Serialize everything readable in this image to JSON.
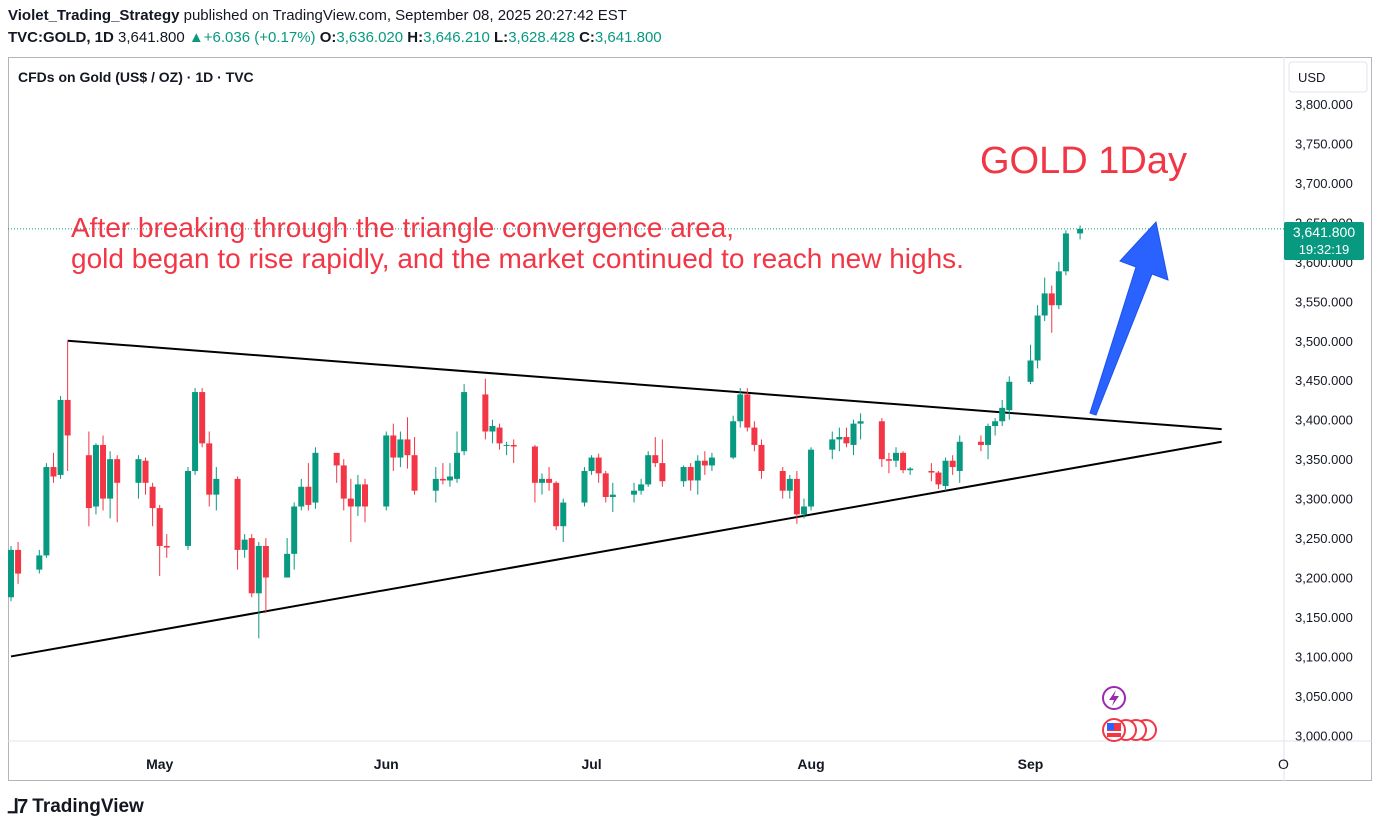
{
  "header": {
    "author": "Violet_Trading_Strategy",
    "published": "published on TradingView.com, September 08, 2025 20:27:42 EST",
    "symbol": "TVC:GOLD, 1D",
    "last": "3,641.800",
    "change": "+6.036 (+0.17%)",
    "o_label": "O:",
    "o": "3,636.020",
    "h_label": "H:",
    "h": "3,646.210",
    "l_label": "L:",
    "l": "3,628.428",
    "c_label": "C:",
    "c": "3,641.800"
  },
  "chart_title": "CFDs on Gold (US$ / OZ) · 1D · TVC",
  "currency": "USD",
  "annotations": {
    "big_title": "GOLD 1Day",
    "line1": "After breaking through the triangle convergence area,",
    "line2": "gold began to rise rapidly, and the market continued to reach new highs."
  },
  "price_tag": {
    "price": "3,641.800",
    "countdown": "19:32:19"
  },
  "brand": {
    "name": "TradingView"
  },
  "colors": {
    "up": "#089981",
    "down": "#f23645",
    "annotation": "#f23645",
    "arrow": "#2962ff"
  },
  "chart_data": {
    "type": "candlestick",
    "y_ticks": [
      "3,800.000",
      "3,750.000",
      "3,700.000",
      "3,650.000",
      "3,600.000",
      "3,550.000",
      "3,500.000",
      "3,450.000",
      "3,400.000",
      "3,350.000",
      "3,300.000",
      "3,250.000",
      "3,200.000",
      "3,150.000",
      "3,100.000",
      "3,050.000",
      "3,000.000"
    ],
    "ylim": [
      2975,
      3840
    ],
    "x_ticks": [
      {
        "label": "May",
        "date": "2025-05-01"
      },
      {
        "label": "Jun",
        "date": "2025-06-02"
      },
      {
        "label": "Jul",
        "date": "2025-07-01"
      },
      {
        "label": "Aug",
        "date": "2025-08-01"
      },
      {
        "label": "Sep",
        "date": "2025-09-01"
      }
    ],
    "candles": [
      {
        "d": "2025-04-10",
        "o": 3175,
        "h": 3240,
        "l": 3170,
        "c": 3235
      },
      {
        "d": "2025-04-11",
        "o": 3235,
        "h": 3245,
        "l": 3192,
        "c": 3205
      },
      {
        "d": "2025-04-14",
        "o": 3210,
        "h": 3235,
        "l": 3205,
        "c": 3228
      },
      {
        "d": "2025-04-15",
        "o": 3228,
        "h": 3345,
        "l": 3225,
        "c": 3340
      },
      {
        "d": "2025-04-16",
        "o": 3340,
        "h": 3358,
        "l": 3320,
        "c": 3328
      },
      {
        "d": "2025-04-17",
        "o": 3330,
        "h": 3430,
        "l": 3325,
        "c": 3425
      },
      {
        "d": "2025-04-18",
        "o": 3425,
        "h": 3500,
        "l": 3335,
        "c": 3380
      },
      {
        "d": "2025-04-21",
        "o": 3355,
        "h": 3385,
        "l": 3265,
        "c": 3288
      },
      {
        "d": "2025-04-22",
        "o": 3290,
        "h": 3370,
        "l": 3280,
        "c": 3368
      },
      {
        "d": "2025-04-23",
        "o": 3368,
        "h": 3380,
        "l": 3285,
        "c": 3300
      },
      {
        "d": "2025-04-24",
        "o": 3300,
        "h": 3360,
        "l": 3275,
        "c": 3350
      },
      {
        "d": "2025-04-25",
        "o": 3350,
        "h": 3355,
        "l": 3270,
        "c": 3320
      },
      {
        "d": "2025-04-28",
        "o": 3320,
        "h": 3355,
        "l": 3300,
        "c": 3350
      },
      {
        "d": "2025-04-29",
        "o": 3348,
        "h": 3352,
        "l": 3305,
        "c": 3320
      },
      {
        "d": "2025-04-30",
        "o": 3315,
        "h": 3320,
        "l": 3265,
        "c": 3288
      },
      {
        "d": "2025-05-01",
        "o": 3288,
        "h": 3292,
        "l": 3202,
        "c": 3240
      },
      {
        "d": "2025-05-02",
        "o": 3240,
        "h": 3255,
        "l": 3225,
        "c": 3238
      },
      {
        "d": "2025-05-05",
        "o": 3240,
        "h": 3340,
        "l": 3235,
        "c": 3335
      },
      {
        "d": "2025-05-06",
        "o": 3335,
        "h": 3440,
        "l": 3330,
        "c": 3435
      },
      {
        "d": "2025-05-07",
        "o": 3435,
        "h": 3440,
        "l": 3365,
        "c": 3370
      },
      {
        "d": "2025-05-08",
        "o": 3370,
        "h": 3385,
        "l": 3290,
        "c": 3305
      },
      {
        "d": "2025-05-09",
        "o": 3305,
        "h": 3340,
        "l": 3285,
        "c": 3325
      },
      {
        "d": "2025-05-12",
        "o": 3325,
        "h": 3328,
        "l": 3210,
        "c": 3235
      },
      {
        "d": "2025-05-13",
        "o": 3235,
        "h": 3255,
        "l": 3225,
        "c": 3248
      },
      {
        "d": "2025-05-14",
        "o": 3250,
        "h": 3255,
        "l": 3175,
        "c": 3180
      },
      {
        "d": "2025-05-15",
        "o": 3180,
        "h": 3245,
        "l": 3123,
        "c": 3240
      },
      {
        "d": "2025-05-16",
        "o": 3240,
        "h": 3250,
        "l": 3155,
        "c": 3200
      },
      {
        "d": "2025-05-19",
        "o": 3200,
        "h": 3250,
        "l": 3200,
        "c": 3230
      },
      {
        "d": "2025-05-20",
        "o": 3230,
        "h": 3295,
        "l": 3210,
        "c": 3290
      },
      {
        "d": "2025-05-21",
        "o": 3290,
        "h": 3325,
        "l": 3285,
        "c": 3315
      },
      {
        "d": "2025-05-22",
        "o": 3315,
        "h": 3345,
        "l": 3285,
        "c": 3292
      },
      {
        "d": "2025-05-23",
        "o": 3295,
        "h": 3365,
        "l": 3287,
        "c": 3358
      },
      {
        "d": "2025-05-26",
        "o": 3358,
        "h": 3356,
        "l": 3320,
        "c": 3342
      },
      {
        "d": "2025-05-27",
        "o": 3342,
        "h": 3350,
        "l": 3285,
        "c": 3300
      },
      {
        "d": "2025-05-28",
        "o": 3300,
        "h": 3325,
        "l": 3245,
        "c": 3290
      },
      {
        "d": "2025-05-29",
        "o": 3290,
        "h": 3330,
        "l": 3278,
        "c": 3318
      },
      {
        "d": "2025-05-30",
        "o": 3318,
        "h": 3325,
        "l": 3270,
        "c": 3290
      },
      {
        "d": "2025-06-02",
        "o": 3290,
        "h": 3385,
        "l": 3285,
        "c": 3380
      },
      {
        "d": "2025-06-03",
        "o": 3380,
        "h": 3395,
        "l": 3335,
        "c": 3352
      },
      {
        "d": "2025-06-04",
        "o": 3352,
        "h": 3385,
        "l": 3340,
        "c": 3375
      },
      {
        "d": "2025-06-05",
        "o": 3375,
        "h": 3403,
        "l": 3338,
        "c": 3355
      },
      {
        "d": "2025-06-06",
        "o": 3355,
        "h": 3378,
        "l": 3305,
        "c": 3310
      },
      {
        "d": "2025-06-09",
        "o": 3310,
        "h": 3340,
        "l": 3295,
        "c": 3325
      },
      {
        "d": "2025-06-10",
        "o": 3325,
        "h": 3345,
        "l": 3318,
        "c": 3323
      },
      {
        "d": "2025-06-11",
        "o": 3323,
        "h": 3345,
        "l": 3315,
        "c": 3328
      },
      {
        "d": "2025-06-12",
        "o": 3325,
        "h": 3385,
        "l": 3320,
        "c": 3358
      },
      {
        "d": "2025-06-13",
        "o": 3360,
        "h": 3445,
        "l": 3355,
        "c": 3435
      },
      {
        "d": "2025-06-16",
        "o": 3432,
        "h": 3452,
        "l": 3375,
        "c": 3385
      },
      {
        "d": "2025-06-17",
        "o": 3385,
        "h": 3400,
        "l": 3370,
        "c": 3392
      },
      {
        "d": "2025-06-18",
        "o": 3390,
        "h": 3395,
        "l": 3362,
        "c": 3370
      },
      {
        "d": "2025-06-19",
        "o": 3368,
        "h": 3372,
        "l": 3355,
        "c": 3368
      },
      {
        "d": "2025-06-20",
        "o": 3368,
        "h": 3375,
        "l": 3345,
        "c": 3366
      },
      {
        "d": "2025-06-23",
        "o": 3366,
        "h": 3368,
        "l": 3295,
        "c": 3320
      },
      {
        "d": "2025-06-24",
        "o": 3320,
        "h": 3332,
        "l": 3305,
        "c": 3325
      },
      {
        "d": "2025-06-25",
        "o": 3325,
        "h": 3340,
        "l": 3310,
        "c": 3320
      },
      {
        "d": "2025-06-26",
        "o": 3320,
        "h": 3322,
        "l": 3260,
        "c": 3265
      },
      {
        "d": "2025-06-27",
        "o": 3265,
        "h": 3300,
        "l": 3245,
        "c": 3295
      },
      {
        "d": "2025-06-30",
        "o": 3295,
        "h": 3340,
        "l": 3290,
        "c": 3335
      },
      {
        "d": "2025-07-01",
        "o": 3335,
        "h": 3355,
        "l": 3330,
        "c": 3352
      },
      {
        "d": "2025-07-02",
        "o": 3352,
        "h": 3357,
        "l": 3320,
        "c": 3332
      },
      {
        "d": "2025-07-03",
        "o": 3332,
        "h": 3335,
        "l": 3295,
        "c": 3302
      },
      {
        "d": "2025-07-04",
        "o": 3302,
        "h": 3320,
        "l": 3283,
        "c": 3305
      },
      {
        "d": "2025-07-07",
        "o": 3305,
        "h": 3320,
        "l": 3295,
        "c": 3310
      },
      {
        "d": "2025-07-08",
        "o": 3310,
        "h": 3325,
        "l": 3305,
        "c": 3318
      },
      {
        "d": "2025-07-09",
        "o": 3318,
        "h": 3360,
        "l": 3315,
        "c": 3355
      },
      {
        "d": "2025-07-10",
        "o": 3355,
        "h": 3378,
        "l": 3340,
        "c": 3345
      },
      {
        "d": "2025-07-11",
        "o": 3345,
        "h": 3375,
        "l": 3315,
        "c": 3322
      },
      {
        "d": "2025-07-14",
        "o": 3322,
        "h": 3342,
        "l": 3315,
        "c": 3340
      },
      {
        "d": "2025-07-15",
        "o": 3340,
        "h": 3345,
        "l": 3310,
        "c": 3323
      },
      {
        "d": "2025-07-16",
        "o": 3323,
        "h": 3355,
        "l": 3305,
        "c": 3348
      },
      {
        "d": "2025-07-17",
        "o": 3348,
        "h": 3360,
        "l": 3330,
        "c": 3342
      },
      {
        "d": "2025-07-18",
        "o": 3342,
        "h": 3358,
        "l": 3335,
        "c": 3352
      },
      {
        "d": "2025-07-21",
        "o": 3352,
        "h": 3405,
        "l": 3350,
        "c": 3398
      },
      {
        "d": "2025-07-22",
        "o": 3398,
        "h": 3440,
        "l": 3390,
        "c": 3432
      },
      {
        "d": "2025-07-23",
        "o": 3432,
        "h": 3440,
        "l": 3385,
        "c": 3390
      },
      {
        "d": "2025-07-24",
        "o": 3390,
        "h": 3398,
        "l": 3360,
        "c": 3368
      },
      {
        "d": "2025-07-25",
        "o": 3368,
        "h": 3375,
        "l": 3325,
        "c": 3335
      },
      {
        "d": "2025-07-28",
        "o": 3335,
        "h": 3340,
        "l": 3300,
        "c": 3310
      },
      {
        "d": "2025-07-29",
        "o": 3310,
        "h": 3330,
        "l": 3300,
        "c": 3325
      },
      {
        "d": "2025-07-30",
        "o": 3325,
        "h": 3335,
        "l": 3268,
        "c": 3280
      },
      {
        "d": "2025-07-31",
        "o": 3280,
        "h": 3300,
        "l": 3275,
        "c": 3290
      },
      {
        "d": "2025-08-01",
        "o": 3290,
        "h": 3365,
        "l": 3285,
        "c": 3362
      },
      {
        "d": "2025-08-04",
        "o": 3362,
        "h": 3385,
        "l": 3350,
        "c": 3375
      },
      {
        "d": "2025-08-05",
        "o": 3375,
        "h": 3390,
        "l": 3360,
        "c": 3378
      },
      {
        "d": "2025-08-06",
        "o": 3378,
        "h": 3390,
        "l": 3365,
        "c": 3370
      },
      {
        "d": "2025-08-07",
        "o": 3368,
        "h": 3400,
        "l": 3355,
        "c": 3395
      },
      {
        "d": "2025-08-08",
        "o": 3395,
        "h": 3408,
        "l": 3375,
        "c": 3398
      },
      {
        "d": "2025-08-11",
        "o": 3398,
        "h": 3402,
        "l": 3340,
        "c": 3350
      },
      {
        "d": "2025-08-12",
        "o": 3350,
        "h": 3358,
        "l": 3332,
        "c": 3348
      },
      {
        "d": "2025-08-13",
        "o": 3348,
        "h": 3365,
        "l": 3340,
        "c": 3358
      },
      {
        "d": "2025-08-14",
        "o": 3358,
        "h": 3360,
        "l": 3332,
        "c": 3336
      },
      {
        "d": "2025-08-15",
        "o": 3336,
        "h": 3340,
        "l": 3330,
        "c": 3338
      },
      {
        "d": "2025-08-18",
        "o": 3335,
        "h": 3345,
        "l": 3322,
        "c": 3333
      },
      {
        "d": "2025-08-19",
        "o": 3333,
        "h": 3335,
        "l": 3312,
        "c": 3318
      },
      {
        "d": "2025-08-20",
        "o": 3316,
        "h": 3352,
        "l": 3310,
        "c": 3348
      },
      {
        "d": "2025-08-21",
        "o": 3348,
        "h": 3355,
        "l": 3330,
        "c": 3340
      },
      {
        "d": "2025-08-22",
        "o": 3335,
        "h": 3380,
        "l": 3320,
        "c": 3372
      },
      {
        "d": "2025-08-25",
        "o": 3372,
        "h": 3380,
        "l": 3360,
        "c": 3368
      },
      {
        "d": "2025-08-26",
        "o": 3368,
        "h": 3395,
        "l": 3350,
        "c": 3392
      },
      {
        "d": "2025-08-27",
        "o": 3392,
        "h": 3402,
        "l": 3380,
        "c": 3398
      },
      {
        "d": "2025-08-28",
        "o": 3398,
        "h": 3425,
        "l": 3392,
        "c": 3415
      },
      {
        "d": "2025-08-29",
        "o": 3412,
        "h": 3455,
        "l": 3400,
        "c": 3448
      },
      {
        "d": "2025-09-01",
        "o": 3448,
        "h": 3495,
        "l": 3445,
        "c": 3475
      },
      {
        "d": "2025-09-02",
        "o": 3475,
        "h": 3545,
        "l": 3465,
        "c": 3532
      },
      {
        "d": "2025-09-03",
        "o": 3532,
        "h": 3580,
        "l": 3525,
        "c": 3560
      },
      {
        "d": "2025-09-04",
        "o": 3560,
        "h": 3570,
        "l": 3510,
        "c": 3545
      },
      {
        "d": "2025-09-05",
        "o": 3545,
        "h": 3600,
        "l": 3540,
        "c": 3588
      },
      {
        "d": "2025-09-06",
        "o": 3588,
        "h": 3640,
        "l": 3583,
        "c": 3636
      },
      {
        "d": "2025-09-08",
        "o": 3636.02,
        "h": 3646.21,
        "l": 3628.428,
        "c": 3641.8
      }
    ],
    "trendlines": [
      {
        "name": "upper",
        "points": [
          {
            "d": "2025-04-18",
            "y": 3500
          },
          {
            "d": "2025-09-28",
            "y": 3388
          }
        ]
      },
      {
        "name": "lower",
        "points": [
          {
            "d": "2025-04-10",
            "y": 3100
          },
          {
            "d": "2025-09-28",
            "y": 3372
          }
        ]
      }
    ],
    "last_price": 3641.8,
    "grid": false
  }
}
